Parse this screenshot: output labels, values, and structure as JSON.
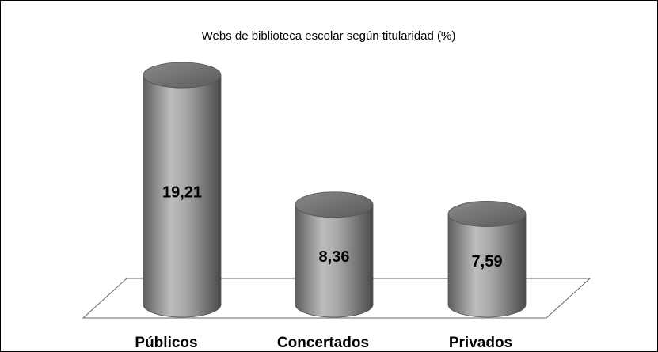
{
  "chart_data": {
    "type": "bar",
    "title": "Webs de biblioteca escolar según titularidad (%)",
    "categories": [
      "Públicos",
      "Concertados",
      "Privados"
    ],
    "values": [
      19.21,
      8.36,
      7.59
    ],
    "value_labels": [
      "19,21",
      "8,36",
      "7,59"
    ],
    "color": "#8c8c8c"
  }
}
